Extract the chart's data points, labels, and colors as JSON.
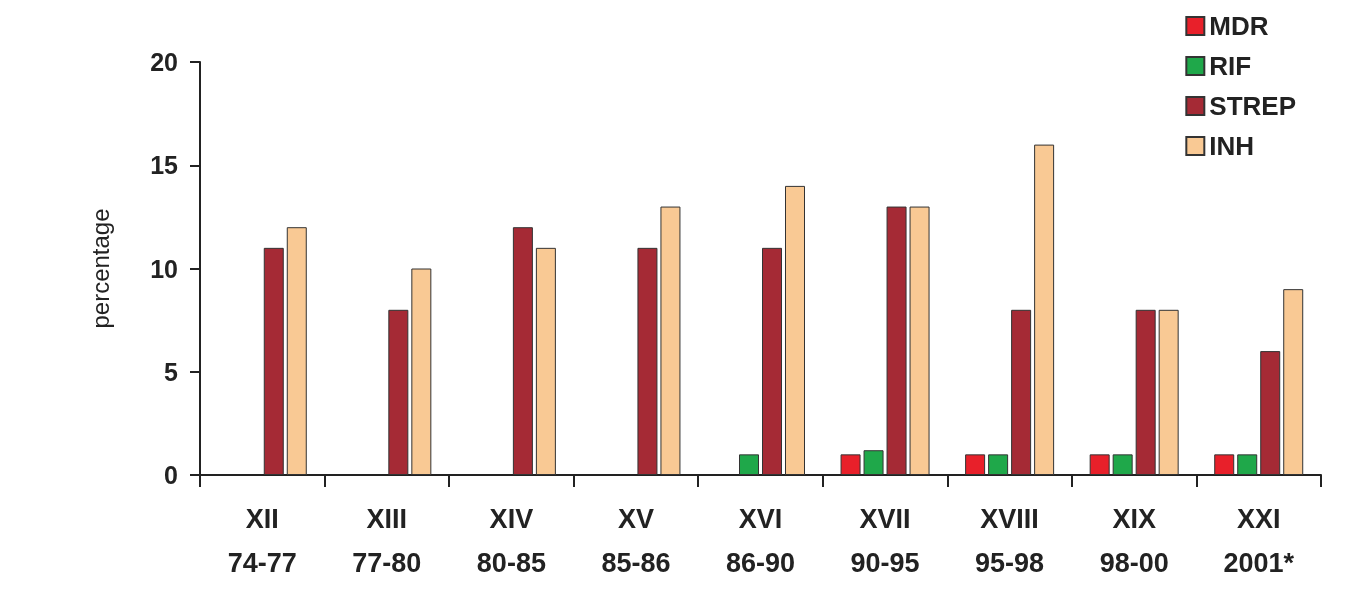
{
  "chart_data": {
    "type": "bar",
    "ylabel": "percentage",
    "categories": [
      "XII\n74-77",
      "XIII\n77-80",
      "XIV\n80-85",
      "XV\n85-86",
      "XVI\n86-90",
      "XVII\n90-95",
      "XVIII\n95-98",
      "XIX\n98-00",
      "XXI\n2001*"
    ],
    "series": [
      {
        "name": "MDR",
        "color": "#e8202a",
        "values": [
          null,
          null,
          null,
          null,
          null,
          1,
          1,
          1,
          1
        ]
      },
      {
        "name": "RIF",
        "color": "#1fa84a",
        "values": [
          null,
          null,
          null,
          null,
          1,
          1.2,
          1,
          1,
          1
        ]
      },
      {
        "name": "STREP",
        "color": "#a52a35",
        "values": [
          11,
          8,
          12,
          11,
          11,
          13,
          8,
          8,
          6
        ]
      },
      {
        "name": "INH",
        "color": "#f9c994",
        "values": [
          12,
          10,
          11,
          13,
          14,
          13,
          16,
          8,
          9
        ]
      }
    ],
    "ylim": [
      0,
      20
    ],
    "yticks": [
      0,
      5,
      10,
      15,
      20
    ],
    "grid": false,
    "legend": "top right"
  }
}
